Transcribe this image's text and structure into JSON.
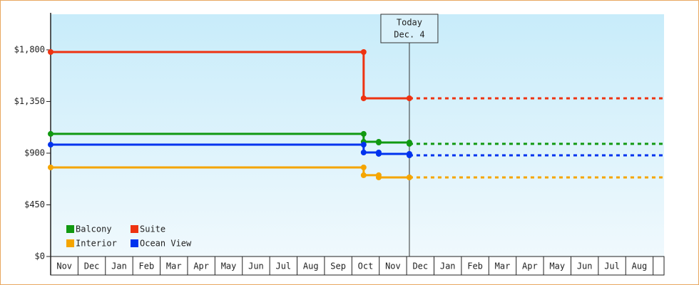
{
  "chart_data": {
    "type": "step-line",
    "categories": [
      "Nov",
      "Dec",
      "Jan",
      "Feb",
      "Mar",
      "Apr",
      "May",
      "Jun",
      "Jul",
      "Aug",
      "Sep",
      "Oct",
      "Nov",
      "Dec",
      "Jan",
      "Feb",
      "Mar",
      "Apr",
      "May",
      "Jun",
      "Jul",
      "Aug"
    ],
    "xlim": [
      0,
      22.4
    ],
    "ylim": [
      0,
      2110
    ],
    "yticks": [
      {
        "value": 0,
        "label": "$0"
      },
      {
        "value": 450,
        "label": "$450"
      },
      {
        "value": 900,
        "label": "$900"
      },
      {
        "value": 1350,
        "label": "$1,350"
      },
      {
        "value": 1800,
        "label": "$1,800"
      }
    ],
    "annotation": {
      "x": 13.1,
      "lines": [
        "Today",
        "Dec. 4"
      ]
    },
    "series": [
      {
        "name": "Balcony",
        "color": "#119911",
        "x": [
          0,
          11.43,
          11.98,
          13.1
        ],
        "values": [
          1068,
          999,
          993,
          981
        ]
      },
      {
        "name": "Suite",
        "color": "#ee3311",
        "x": [
          0,
          11.43,
          13.1
        ],
        "values": [
          1781,
          1378,
          1378
        ]
      },
      {
        "name": "Interior",
        "color": "#f5a500",
        "x": [
          0,
          11.43,
          11.98,
          13.1
        ],
        "values": [
          776,
          708,
          689,
          689
        ]
      },
      {
        "name": "Ocean View",
        "color": "#0033ee",
        "x": [
          0,
          11.43,
          11.98,
          13.1
        ],
        "values": [
          974,
          906,
          894,
          881
        ]
      }
    ]
  }
}
